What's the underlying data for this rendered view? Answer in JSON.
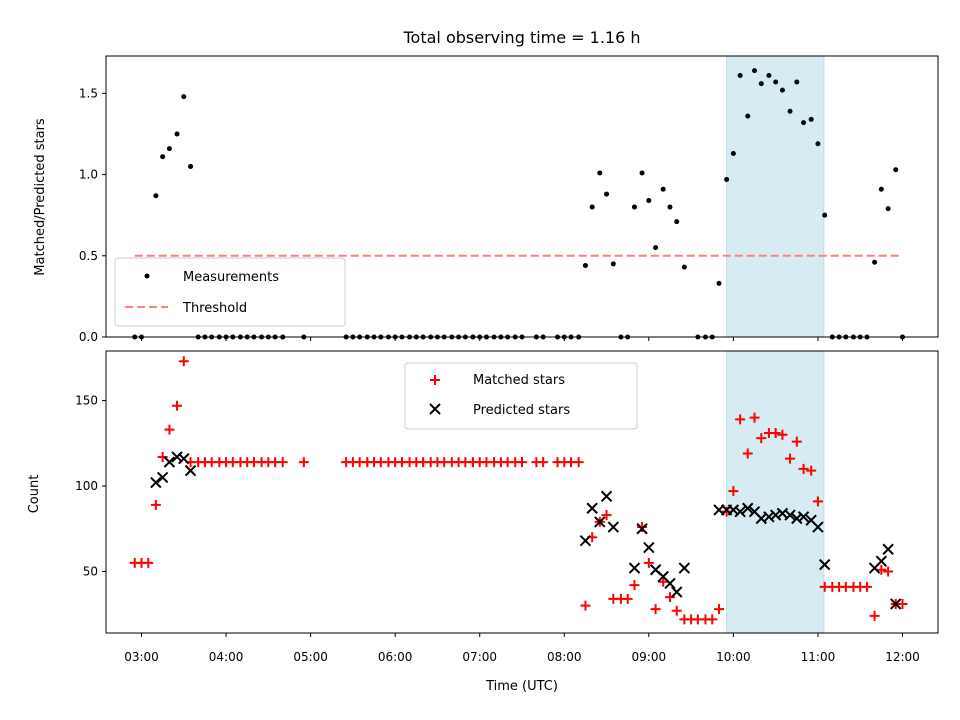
{
  "chart_data": [
    {
      "type": "scatter",
      "title": "Total observing time = 1.16 h",
      "xlabel": "",
      "ylabel": "Matched/Predicted stars",
      "xlim": [
        2.58,
        12.42
      ],
      "ylim": [
        0,
        1.73
      ],
      "yticks": [
        0,
        0.5,
        1.0,
        1.5
      ],
      "ytick_labels": [
        "0.0",
        "0.5",
        "1.0",
        "1.5"
      ],
      "shaded_region": {
        "x": [
          9.92,
          11.07
        ],
        "color": "#add8e6"
      },
      "legend_position": "lower-left",
      "series": [
        {
          "name": "Measurements",
          "color": "#000000",
          "marker": "dot",
          "points": [
            [
              2.92,
              0
            ],
            [
              3.0,
              0
            ],
            [
              3.17,
              0.87
            ],
            [
              3.25,
              1.11
            ],
            [
              3.33,
              1.16
            ],
            [
              3.42,
              1.25
            ],
            [
              3.5,
              1.48
            ],
            [
              3.58,
              1.05
            ],
            [
              3.67,
              0
            ],
            [
              3.75,
              0
            ],
            [
              3.83,
              0
            ],
            [
              3.92,
              0
            ],
            [
              4.0,
              0
            ],
            [
              4.08,
              0
            ],
            [
              4.17,
              0
            ],
            [
              4.25,
              0
            ],
            [
              4.33,
              0
            ],
            [
              4.42,
              0
            ],
            [
              4.5,
              0
            ],
            [
              4.58,
              0
            ],
            [
              4.67,
              0
            ],
            [
              4.92,
              0
            ],
            [
              5.42,
              0
            ],
            [
              5.5,
              0
            ],
            [
              5.58,
              0
            ],
            [
              5.67,
              0
            ],
            [
              5.75,
              0
            ],
            [
              5.83,
              0
            ],
            [
              5.92,
              0
            ],
            [
              6.0,
              0
            ],
            [
              6.08,
              0
            ],
            [
              6.17,
              0
            ],
            [
              6.25,
              0
            ],
            [
              6.33,
              0
            ],
            [
              6.42,
              0
            ],
            [
              6.5,
              0
            ],
            [
              6.58,
              0
            ],
            [
              6.67,
              0
            ],
            [
              6.75,
              0
            ],
            [
              6.83,
              0
            ],
            [
              6.92,
              0
            ],
            [
              7.0,
              0
            ],
            [
              7.08,
              0
            ],
            [
              7.17,
              0
            ],
            [
              7.25,
              0
            ],
            [
              7.33,
              0
            ],
            [
              7.42,
              0
            ],
            [
              7.5,
              0
            ],
            [
              7.67,
              0
            ],
            [
              7.75,
              0
            ],
            [
              7.92,
              0
            ],
            [
              8.0,
              0
            ],
            [
              8.08,
              0
            ],
            [
              8.17,
              0
            ],
            [
              8.25,
              0.44
            ],
            [
              8.33,
              0.8
            ],
            [
              8.42,
              1.01
            ],
            [
              8.5,
              0.88
            ],
            [
              8.58,
              0.45
            ],
            [
              8.67,
              0
            ],
            [
              8.75,
              0
            ],
            [
              8.83,
              0.8
            ],
            [
              8.92,
              1.01
            ],
            [
              9.0,
              0.84
            ],
            [
              9.08,
              0.55
            ],
            [
              9.17,
              0.91
            ],
            [
              9.25,
              0.8
            ],
            [
              9.33,
              0.71
            ],
            [
              9.42,
              0.43
            ],
            [
              9.58,
              0
            ],
            [
              9.67,
              0
            ],
            [
              9.75,
              0
            ],
            [
              9.83,
              0.33
            ],
            [
              9.92,
              0.97
            ],
            [
              10.0,
              1.13
            ],
            [
              10.08,
              1.61
            ],
            [
              10.17,
              1.36
            ],
            [
              10.25,
              1.64
            ],
            [
              10.33,
              1.56
            ],
            [
              10.42,
              1.61
            ],
            [
              10.5,
              1.57
            ],
            [
              10.58,
              1.52
            ],
            [
              10.67,
              1.39
            ],
            [
              10.75,
              1.57
            ],
            [
              10.83,
              1.32
            ],
            [
              10.92,
              1.34
            ],
            [
              11.0,
              1.19
            ],
            [
              11.08,
              0.75
            ],
            [
              11.17,
              0
            ],
            [
              11.25,
              0
            ],
            [
              11.33,
              0
            ],
            [
              11.42,
              0
            ],
            [
              11.5,
              0
            ],
            [
              11.58,
              0
            ],
            [
              11.67,
              0.46
            ],
            [
              11.75,
              0.91
            ],
            [
              11.83,
              0.79
            ],
            [
              11.92,
              1.03
            ],
            [
              12.0,
              0
            ]
          ]
        },
        {
          "name": "Threshold",
          "color": "#ff7f7f",
          "marker": "dashed-line",
          "points": [
            [
              2.92,
              0.5
            ],
            [
              12.0,
              0.5
            ]
          ]
        }
      ]
    },
    {
      "type": "scatter",
      "title": "",
      "xlabel": "Time (UTC)",
      "ylabel": "Count",
      "xlim": [
        2.58,
        12.42
      ],
      "ylim": [
        14,
        179
      ],
      "xticks": [
        3,
        4,
        5,
        6,
        7,
        8,
        9,
        10,
        11,
        12
      ],
      "xtick_labels": [
        "03:00",
        "04:00",
        "05:00",
        "06:00",
        "07:00",
        "08:00",
        "09:00",
        "10:00",
        "11:00",
        "12:00"
      ],
      "yticks": [
        50,
        100,
        150
      ],
      "ytick_labels": [
        "50",
        "100",
        "150"
      ],
      "shaded_region": {
        "x": [
          9.92,
          11.07
        ],
        "color": "#add8e6"
      },
      "legend_position": "upper-center",
      "series": [
        {
          "name": "Matched stars",
          "color": "#ff0000",
          "marker": "plus",
          "points": [
            [
              2.92,
              55
            ],
            [
              3.0,
              55
            ],
            [
              3.08,
              55
            ],
            [
              3.17,
              89
            ],
            [
              3.25,
              117
            ],
            [
              3.33,
              133
            ],
            [
              3.42,
              147
            ],
            [
              3.5,
              173
            ],
            [
              3.58,
              114
            ],
            [
              3.67,
              114
            ],
            [
              3.75,
              114
            ],
            [
              3.83,
              114
            ],
            [
              3.92,
              114
            ],
            [
              4.0,
              114
            ],
            [
              4.08,
              114
            ],
            [
              4.17,
              114
            ],
            [
              4.25,
              114
            ],
            [
              4.33,
              114
            ],
            [
              4.42,
              114
            ],
            [
              4.5,
              114
            ],
            [
              4.58,
              114
            ],
            [
              4.67,
              114
            ],
            [
              4.92,
              114
            ],
            [
              5.42,
              114
            ],
            [
              5.5,
              114
            ],
            [
              5.58,
              114
            ],
            [
              5.67,
              114
            ],
            [
              5.75,
              114
            ],
            [
              5.83,
              114
            ],
            [
              5.92,
              114
            ],
            [
              6.0,
              114
            ],
            [
              6.08,
              114
            ],
            [
              6.17,
              114
            ],
            [
              6.25,
              114
            ],
            [
              6.33,
              114
            ],
            [
              6.42,
              114
            ],
            [
              6.5,
              114
            ],
            [
              6.58,
              114
            ],
            [
              6.67,
              114
            ],
            [
              6.75,
              114
            ],
            [
              6.83,
              114
            ],
            [
              6.92,
              114
            ],
            [
              7.0,
              114
            ],
            [
              7.08,
              114
            ],
            [
              7.17,
              114
            ],
            [
              7.25,
              114
            ],
            [
              7.33,
              114
            ],
            [
              7.42,
              114
            ],
            [
              7.5,
              114
            ],
            [
              7.67,
              114
            ],
            [
              7.75,
              114
            ],
            [
              7.92,
              114
            ],
            [
              8.0,
              114
            ],
            [
              8.08,
              114
            ],
            [
              8.17,
              114
            ],
            [
              8.25,
              30
            ],
            [
              8.33,
              70
            ],
            [
              8.42,
              79
            ],
            [
              8.5,
              83
            ],
            [
              8.58,
              34
            ],
            [
              8.67,
              34
            ],
            [
              8.75,
              34
            ],
            [
              8.83,
              42
            ],
            [
              8.92,
              76
            ],
            [
              9.0,
              55
            ],
            [
              9.08,
              28
            ],
            [
              9.17,
              44
            ],
            [
              9.25,
              35
            ],
            [
              9.33,
              27
            ],
            [
              9.42,
              22
            ],
            [
              9.5,
              22
            ],
            [
              9.58,
              22
            ],
            [
              9.67,
              22
            ],
            [
              9.75,
              22
            ],
            [
              9.83,
              28
            ],
            [
              9.92,
              85
            ],
            [
              10.0,
              97
            ],
            [
              10.08,
              139
            ],
            [
              10.17,
              119
            ],
            [
              10.25,
              140
            ],
            [
              10.33,
              128
            ],
            [
              10.42,
              131
            ],
            [
              10.5,
              131
            ],
            [
              10.58,
              130
            ],
            [
              10.67,
              116
            ],
            [
              10.75,
              126
            ],
            [
              10.83,
              110
            ],
            [
              10.92,
              109
            ],
            [
              11.0,
              91
            ],
            [
              11.08,
              41
            ],
            [
              11.17,
              41
            ],
            [
              11.25,
              41
            ],
            [
              11.33,
              41
            ],
            [
              11.42,
              41
            ],
            [
              11.5,
              41
            ],
            [
              11.58,
              41
            ],
            [
              11.67,
              24
            ],
            [
              11.75,
              51
            ],
            [
              11.83,
              50
            ],
            [
              11.92,
              31
            ],
            [
              12.0,
              31
            ]
          ]
        },
        {
          "name": "Predicted stars",
          "color": "#000000",
          "marker": "x",
          "points": [
            [
              3.17,
              102
            ],
            [
              3.25,
              105
            ],
            [
              3.33,
              114
            ],
            [
              3.42,
              117
            ],
            [
              3.5,
              116
            ],
            [
              3.58,
              109
            ],
            [
              8.25,
              68
            ],
            [
              8.33,
              87
            ],
            [
              8.42,
              79
            ],
            [
              8.5,
              94
            ],
            [
              8.58,
              76
            ],
            [
              8.83,
              52
            ],
            [
              8.92,
              75
            ],
            [
              9.0,
              64
            ],
            [
              9.08,
              51
            ],
            [
              9.17,
              47
            ],
            [
              9.25,
              43
            ],
            [
              9.33,
              38
            ],
            [
              9.42,
              52
            ],
            [
              9.83,
              86
            ],
            [
              9.92,
              86
            ],
            [
              10.0,
              86
            ],
            [
              10.08,
              85
            ],
            [
              10.17,
              87
            ],
            [
              10.25,
              85
            ],
            [
              10.33,
              81
            ],
            [
              10.42,
              82
            ],
            [
              10.5,
              83
            ],
            [
              10.58,
              84
            ],
            [
              10.67,
              83
            ],
            [
              10.75,
              81
            ],
            [
              10.83,
              82
            ],
            [
              10.92,
              80
            ],
            [
              11.0,
              76
            ],
            [
              11.08,
              54
            ],
            [
              11.67,
              52
            ],
            [
              11.75,
              56
            ],
            [
              11.83,
              63
            ],
            [
              11.92,
              31
            ]
          ]
        }
      ]
    }
  ]
}
